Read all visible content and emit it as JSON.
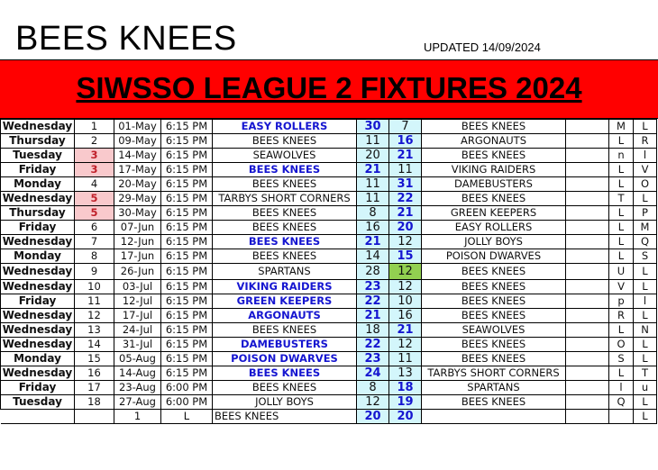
{
  "header": {
    "title": "BEES KNEES",
    "updated": "UPDATED 14/09/2024",
    "banner": "SIWSSO LEAGUE 2 FIXTURES 2024"
  },
  "colors": {
    "banner": "#ff0000",
    "winner": "#1515d0",
    "score_bg": "#d3f6fb",
    "highlight_round": "#f9c9cc",
    "highlight_score": "#92d050"
  },
  "fixtures": [
    {
      "day": "Wednesday",
      "round": "1",
      "date": "01-May",
      "time": "6:15 PM",
      "home": "EASY ROLLERS",
      "home_score": "30",
      "away_score": "7",
      "away": "BEES KNEES",
      "c1": "M",
      "c2": "L",
      "winner": "home"
    },
    {
      "day": "Thursday",
      "round": "2",
      "date": "09-May",
      "time": "6:15 PM",
      "home": "BEES KNEES",
      "home_score": "11",
      "away_score": "16",
      "away": "ARGONAUTS",
      "c1": "L",
      "c2": "R",
      "winner": "away"
    },
    {
      "day": "Tuesday",
      "round": "3",
      "date": "14-May",
      "time": "6:15 PM",
      "home": "SEAWOLVES",
      "home_score": "20",
      "away_score": "21",
      "away": "BEES KNEES",
      "c1": "n",
      "c2": "l",
      "winner": "away",
      "round_highlight": true
    },
    {
      "day": "Friday",
      "round": "3",
      "date": "17-May",
      "time": "6:15 PM",
      "home": "BEES KNEES",
      "home_score": "21",
      "away_score": "11",
      "away": "VIKING RAIDERS",
      "c1": "L",
      "c2": "V",
      "winner": "home",
      "round_highlight": true
    },
    {
      "day": "Monday",
      "round": "4",
      "date": "20-May",
      "time": "6:15 PM",
      "home": "BEES KNEES",
      "home_score": "11",
      "away_score": "31",
      "away": "DAMEBUSTERS",
      "c1": "L",
      "c2": "O",
      "winner": "away"
    },
    {
      "day": "Wednesday",
      "round": "5",
      "date": "29-May",
      "time": "6:15 PM",
      "home": "TARBYS SHORT CORNERS",
      "home_score": "11",
      "away_score": "22",
      "away": "BEES KNEES",
      "c1": "T",
      "c2": "L",
      "winner": "away",
      "round_highlight": true
    },
    {
      "day": "Thursday",
      "round": "5",
      "date": "30-May",
      "time": "6:15 PM",
      "home": "BEES KNEES",
      "home_score": "8",
      "away_score": "21",
      "away": "GREEN KEEPERS",
      "c1": "L",
      "c2": "P",
      "winner": "away",
      "round_highlight": true
    },
    {
      "day": "Friday",
      "round": "6",
      "date": "07-Jun",
      "time": "6:15 PM",
      "home": "BEES KNEES",
      "home_score": "16",
      "away_score": "20",
      "away": "EASY ROLLERS",
      "c1": "L",
      "c2": "M",
      "winner": "away"
    },
    {
      "day": "Wednesday",
      "round": "7",
      "date": "12-Jun",
      "time": "6:15 PM",
      "home": "BEES KNEES",
      "home_score": "21",
      "away_score": "12",
      "away": "JOLLY BOYS",
      "c1": "L",
      "c2": "Q",
      "winner": "home"
    },
    {
      "day": "Monday",
      "round": "8",
      "date": "17-Jun",
      "time": "6:15 PM",
      "home": "BEES KNEES",
      "home_score": "14",
      "away_score": "15",
      "away": "POISON DWARVES",
      "c1": "L",
      "c2": "S",
      "winner": "away"
    },
    {
      "day": "Wednesday",
      "round": "9",
      "date": "26-Jun",
      "time": "6:15 PM",
      "home": "SPARTANS",
      "home_score": "28",
      "away_score": "12",
      "away": "BEES KNEES",
      "c1": "U",
      "c2": "L",
      "winner": "none",
      "score_highlight": true
    },
    {
      "day": "Wednesday",
      "round": "10",
      "date": "03-Jul",
      "time": "6:15 PM",
      "home": "VIKING RAIDERS",
      "home_score": "23",
      "away_score": "12",
      "away": "BEES KNEES",
      "c1": "V",
      "c2": "L",
      "winner": "home"
    },
    {
      "day": "Friday",
      "round": "11",
      "date": "12-Jul",
      "time": "6:15 PM",
      "home": "GREEN KEEPERS",
      "home_score": "22",
      "away_score": "10",
      "away": "BEES KNEES",
      "c1": "p",
      "c2": "l",
      "winner": "home"
    },
    {
      "day": "Wednesday",
      "round": "12",
      "date": "17-Jul",
      "time": "6:15 PM",
      "home": "ARGONAUTS",
      "home_score": "21",
      "away_score": "16",
      "away": "BEES KNEES",
      "c1": "R",
      "c2": "L",
      "winner": "home"
    },
    {
      "day": "Wednesday",
      "round": "13",
      "date": "24-Jul",
      "time": "6:15 PM",
      "home": "BEES KNEES",
      "home_score": "18",
      "away_score": "21",
      "away": "SEAWOLVES",
      "c1": "L",
      "c2": "N",
      "winner": "away"
    },
    {
      "day": "Wednesday",
      "round": "14",
      "date": "31-Jul",
      "time": "6:15 PM",
      "home": "DAMEBUSTERS",
      "home_score": "22",
      "away_score": "12",
      "away": "BEES KNEES",
      "c1": "O",
      "c2": "L",
      "winner": "home"
    },
    {
      "day": "Monday",
      "round": "15",
      "date": "05-Aug",
      "time": "6:15 PM",
      "home": "POISON DWARVES",
      "home_score": "23",
      "away_score": "11",
      "away": "BEES KNEES",
      "c1": "S",
      "c2": "L",
      "winner": "home"
    },
    {
      "day": "Wednesday",
      "round": "16",
      "date": "14-Aug",
      "time": "6:15 PM",
      "home": "BEES KNEES",
      "home_score": "24",
      "away_score": "13",
      "away": "TARBYS SHORT CORNERS",
      "c1": "L",
      "c2": "T",
      "winner": "home"
    },
    {
      "day": "Friday",
      "round": "17",
      "date": "23-Aug",
      "time": "6:00 PM",
      "home": "BEES KNEES",
      "home_score": "8",
      "away_score": "18",
      "away": "SPARTANS",
      "c1": "l",
      "c2": "u",
      "winner": "away"
    },
    {
      "day": "Tuesday",
      "round": "18",
      "date": "27-Aug",
      "time": "6:00 PM",
      "home": "JOLLY BOYS",
      "home_score": "12",
      "away_score": "19",
      "away": "BEES KNEES",
      "c1": "Q",
      "c2": "L",
      "winner": "away"
    }
  ],
  "summary": {
    "round": "1",
    "time": "L",
    "home": "BEES KNEES",
    "home_score": "20",
    "away_score": "20",
    "c2": "L"
  }
}
